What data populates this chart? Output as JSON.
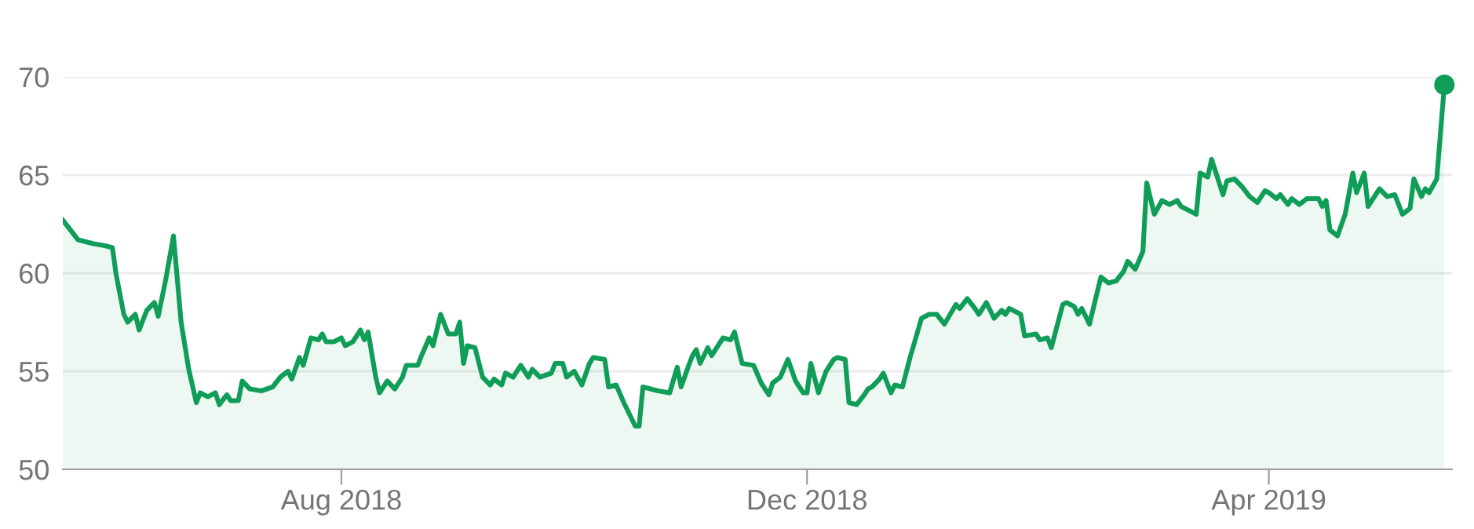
{
  "chart_data": {
    "type": "area",
    "x": [
      "2018-05-20",
      "2018-05-24",
      "2018-05-28",
      "2018-05-31",
      "2018-06-02",
      "2018-06-03",
      "2018-06-05",
      "2018-06-06",
      "2018-06-08",
      "2018-06-09",
      "2018-06-11",
      "2018-06-13",
      "2018-06-14",
      "2018-06-16",
      "2018-06-18",
      "2018-06-20",
      "2018-06-22",
      "2018-06-24",
      "2018-06-25",
      "2018-06-27",
      "2018-06-29",
      "2018-06-30",
      "2018-07-02",
      "2018-07-03",
      "2018-07-05",
      "2018-07-06",
      "2018-07-08",
      "2018-07-11",
      "2018-07-14",
      "2018-07-16",
      "2018-07-18",
      "2018-07-19",
      "2018-07-21",
      "2018-07-22",
      "2018-07-24",
      "2018-07-26",
      "2018-07-27",
      "2018-07-28",
      "2018-07-30",
      "2018-08-01",
      "2018-08-02",
      "2018-08-04",
      "2018-08-06",
      "2018-08-07",
      "2018-08-08",
      "2018-08-10",
      "2018-08-11",
      "2018-08-13",
      "2018-08-15",
      "2018-08-17",
      "2018-08-18",
      "2018-08-21",
      "2018-08-22",
      "2018-08-24",
      "2018-08-25",
      "2018-08-27",
      "2018-08-29",
      "2018-08-31",
      "2018-09-01",
      "2018-09-02",
      "2018-09-03",
      "2018-09-05",
      "2018-09-07",
      "2018-09-09",
      "2018-09-10",
      "2018-09-12",
      "2018-09-13",
      "2018-09-15",
      "2018-09-17",
      "2018-09-19",
      "2018-09-20",
      "2018-09-22",
      "2018-09-25",
      "2018-09-26",
      "2018-09-28",
      "2018-09-29",
      "2018-10-01",
      "2018-10-03",
      "2018-10-05",
      "2018-10-06",
      "2018-10-09",
      "2018-10-10",
      "2018-10-12",
      "2018-10-14",
      "2018-10-17",
      "2018-10-18",
      "2018-10-19",
      "2018-10-23",
      "2018-10-26",
      "2018-10-28",
      "2018-10-29",
      "2018-10-31",
      "2018-11-01",
      "2018-11-02",
      "2018-11-03",
      "2018-11-05",
      "2018-11-06",
      "2018-11-09",
      "2018-11-11",
      "2018-11-12",
      "2018-11-14",
      "2018-11-17",
      "2018-11-19",
      "2018-11-21",
      "2018-11-22",
      "2018-11-24",
      "2018-11-26",
      "2018-11-28",
      "2018-11-30",
      "2018-12-01",
      "2018-12-02",
      "2018-12-04",
      "2018-12-06",
      "2018-12-08",
      "2018-12-09",
      "2018-12-11",
      "2018-12-12",
      "2018-12-14",
      "2018-12-16",
      "2018-12-17",
      "2018-12-18",
      "2018-12-20",
      "2018-12-21",
      "2018-12-23",
      "2018-12-24",
      "2018-12-26",
      "2018-12-28",
      "2018-12-31",
      "2019-01-02",
      "2019-01-04",
      "2019-01-06",
      "2019-01-09",
      "2019-01-10",
      "2019-01-12",
      "2019-01-14",
      "2019-01-15",
      "2019-01-17",
      "2019-01-19",
      "2019-01-21",
      "2019-01-22",
      "2019-01-23",
      "2019-01-26",
      "2019-01-27",
      "2019-01-30",
      "2019-01-31",
      "2019-02-02",
      "2019-02-03",
      "2019-02-06",
      "2019-02-07",
      "2019-02-09",
      "2019-02-10",
      "2019-02-11",
      "2019-02-13",
      "2019-02-16",
      "2019-02-18",
      "2019-02-20",
      "2019-02-22",
      "2019-02-23",
      "2019-02-25",
      "2019-02-27",
      "2019-02-28",
      "2019-03-02",
      "2019-03-04",
      "2019-03-06",
      "2019-03-08",
      "2019-03-09",
      "2019-03-11",
      "2019-03-13",
      "2019-03-14",
      "2019-03-16",
      "2019-03-17",
      "2019-03-20",
      "2019-03-21",
      "2019-03-23",
      "2019-03-25",
      "2019-03-27",
      "2019-03-29",
      "2019-03-31",
      "2019-04-01",
      "2019-04-03",
      "2019-04-04",
      "2019-04-06",
      "2019-04-07",
      "2019-04-09",
      "2019-04-11",
      "2019-04-14",
      "2019-04-15",
      "2019-04-16",
      "2019-04-17",
      "2019-04-19",
      "2019-04-21",
      "2019-04-23",
      "2019-04-24",
      "2019-04-26",
      "2019-04-27",
      "2019-04-29",
      "2019-04-30",
      "2019-05-02",
      "2019-05-04",
      "2019-05-06",
      "2019-05-08",
      "2019-05-09",
      "2019-05-11",
      "2019-05-12",
      "2019-05-13",
      "2019-05-15",
      "2019-05-17"
    ],
    "series": [
      {
        "color": "#0f9d58",
        "values": [
          62.7,
          61.7,
          61.5,
          61.4,
          61.3,
          59.9,
          57.9,
          57.5,
          57.9,
          57.1,
          58.1,
          58.5,
          57.8,
          59.7,
          61.9,
          57.5,
          55.1,
          53.4,
          53.9,
          53.7,
          53.9,
          53.3,
          53.8,
          53.5,
          53.5,
          54.5,
          54.1,
          54.0,
          54.2,
          54.7,
          55.0,
          54.6,
          55.7,
          55.3,
          56.7,
          56.6,
          56.9,
          56.5,
          56.5,
          56.7,
          56.3,
          56.5,
          57.1,
          56.6,
          57.0,
          54.7,
          53.9,
          54.5,
          54.1,
          54.7,
          55.3,
          55.3,
          55.8,
          56.7,
          56.3,
          57.9,
          56.9,
          56.9,
          57.5,
          55.4,
          56.3,
          56.2,
          54.7,
          54.3,
          54.6,
          54.3,
          54.9,
          54.7,
          55.3,
          54.7,
          55.1,
          54.7,
          54.9,
          55.4,
          55.4,
          54.7,
          55.0,
          54.3,
          55.4,
          55.7,
          55.6,
          54.2,
          54.3,
          53.4,
          52.2,
          52.2,
          54.2,
          54.0,
          53.9,
          55.2,
          54.2,
          55.3,
          55.8,
          56.1,
          55.4,
          56.2,
          55.8,
          56.7,
          56.6,
          57.0,
          55.4,
          55.3,
          54.4,
          53.8,
          54.4,
          54.7,
          55.6,
          54.5,
          53.9,
          53.9,
          55.4,
          53.9,
          55.0,
          55.6,
          55.7,
          55.6,
          53.4,
          53.3,
          53.8,
          54.1,
          54.2,
          54.6,
          54.9,
          53.9,
          54.3,
          54.2,
          55.7,
          57.7,
          57.9,
          57.9,
          57.4,
          58.4,
          58.2,
          58.7,
          58.2,
          57.9,
          58.5,
          57.7,
          58.1,
          57.9,
          58.2,
          57.9,
          56.8,
          56.9,
          56.6,
          56.7,
          56.2,
          58.4,
          58.5,
          58.3,
          57.9,
          58.2,
          57.4,
          59.8,
          59.5,
          59.6,
          60.1,
          60.6,
          60.2,
          61.1,
          64.6,
          63.0,
          63.7,
          63.5,
          63.7,
          63.4,
          63.2,
          63.0,
          65.1,
          64.9,
          65.8,
          64.0,
          64.7,
          64.8,
          64.4,
          63.9,
          63.6,
          64.2,
          64.1,
          63.8,
          64.0,
          63.5,
          63.8,
          63.5,
          63.8,
          63.8,
          63.4,
          63.7,
          62.2,
          61.9,
          63.0,
          65.1,
          64.1,
          65.1,
          63.4,
          64.0,
          64.3,
          63.9,
          64.0,
          63.0,
          63.3,
          64.8,
          63.9,
          64.3,
          64.1,
          64.8,
          69.6
        ]
      },
      {
        "type": "scatter",
        "color": "#0f9d58",
        "marker": "circle",
        "x": [
          "2019-05-17"
        ],
        "values": [
          69.6
        ]
      }
    ],
    "xlim": [
      "2018-05-20",
      "2019-05-19"
    ],
    "xticks": [
      {
        "value": "2018-08-01",
        "label": "Aug 2018"
      },
      {
        "value": "2018-12-01",
        "label": "Dec 2018"
      },
      {
        "value": "2019-04-01",
        "label": "Apr 2019"
      }
    ],
    "ylim": [
      50,
      70
    ],
    "yticks": [
      50,
      55,
      60,
      65,
      70
    ],
    "grid": "y"
  }
}
